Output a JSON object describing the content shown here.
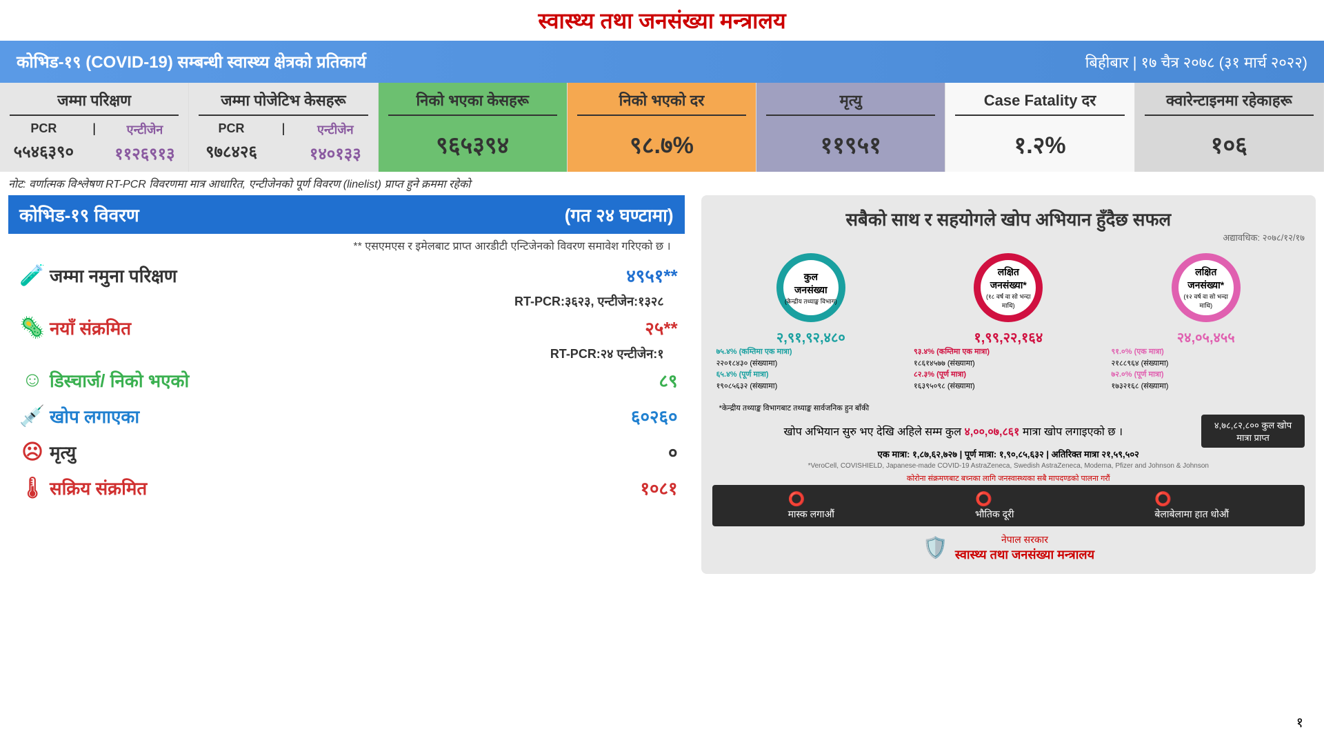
{
  "header": {
    "title": "स्वास्थ्य तथा जनसंख्या मन्त्रालय"
  },
  "banner": {
    "left": "कोभिड-१९ (COVID-19) सम्बन्धी स्वास्थ्य क्षेत्रको प्रतिकार्य",
    "right": "बिहीबार | १७ चैत्र २०७८ (३१ मार्च २०२२)"
  },
  "cards": [
    {
      "title": "जम्मा परिक्षण",
      "bg": "#e6e6e6",
      "split": true,
      "h1": "PCR",
      "h2": "एन्टीजेन",
      "v1": "५५४६३९०",
      "v2": "११२६९१३",
      "v1c": "#333",
      "v2c": "#8a5aa0"
    },
    {
      "title": "जम्मा पोजेटिभ केसहरू",
      "bg": "#e6e6e6",
      "split": true,
      "h1": "PCR",
      "h2": "एन्टीजेन",
      "v1": "९७८४२६",
      "v2": "१४०१३३",
      "v1c": "#333",
      "v2c": "#8a5aa0"
    },
    {
      "title": "निको भएका केसहरू",
      "bg": "#6cc070",
      "big": "९६५३९४"
    },
    {
      "title": "निको भएको दर",
      "bg": "#f5a850",
      "big": "९८.७%"
    },
    {
      "title": "मृत्यु",
      "bg": "#a0a0c0",
      "big": "११९५१"
    },
    {
      "title": "Case Fatality दर",
      "bg": "#f8f8f8",
      "big": "१.२%"
    },
    {
      "title": "क्वारेन्टाइनमा रहेकाहरू",
      "bg": "#d8d8d8",
      "big": "१०६"
    }
  ],
  "note": "नोट: वर्णात्मक विश्लेषण RT-PCR विवरणमा मात्र आधारित, एन्टीजेनको पूर्ण विवरण (linelist) प्राप्त हुने क्रममा रहेको",
  "detail": {
    "header_l": "कोभिड-१९ विवरण",
    "header_r": "(गत २४ घण्टामा)",
    "subnote": "** एसएमएस र इमेलबाट प्राप्त आरडीटी एन्टिजेनको विवरण समावेश गरिएको छ ।",
    "rows": [
      {
        "icon": "🧪",
        "iconc": "#2070d0",
        "label": "जम्मा नमुना परिक्षण",
        "labelc": "#333",
        "val": "४९५१**",
        "valc": "#2070d0",
        "sub": "RT-PCR:३६२३, एन्टीजेन:१३२८"
      },
      {
        "icon": "🦠",
        "iconc": "#d03030",
        "label": "नयाँ संक्रमित",
        "labelc": "#d03030",
        "val": "२५**",
        "valc": "#d03030",
        "sub": "RT-PCR:२४ एन्टीजेन:१"
      },
      {
        "icon": "☺",
        "iconc": "#3ab050",
        "label": "डिस्चार्ज/ निको भएको",
        "labelc": "#3ab050",
        "val": "८९",
        "valc": "#3ab050",
        "sub": ""
      },
      {
        "icon": "💉",
        "iconc": "#2080d0",
        "label": "खोप लगाएका",
        "labelc": "#2080d0",
        "val": "६०२६०",
        "valc": "#2080d0",
        "sub": ""
      },
      {
        "icon": "☹",
        "iconc": "#d03030",
        "label": "मृत्यु",
        "labelc": "#333",
        "val": "०",
        "valc": "#333",
        "sub": ""
      },
      {
        "icon": "🌡",
        "iconc": "#d03030",
        "label": "सक्रिय संक्रमित",
        "labelc": "#d03030",
        "val": "१०८१",
        "valc": "#d03030",
        "sub": ""
      }
    ]
  },
  "vax": {
    "title": "सबैको साथ र सहयोगले खोप अभियान हुँदैछ सफल",
    "date": "अद्यावधिक: २०७८/१२/१७",
    "circles": [
      {
        "color": "#1aa0a0",
        "t1": "कुल",
        "t2": "जनसंख्या",
        "t3": "(केन्द्रीय तथ्याङ्क विभाग)",
        "num": "२,९१,९२,४८०",
        "s1": "७५.४% (कम्तिमा एक मात्रा)",
        "s1b": "२२०१८४३० (संख्यामा)",
        "s2": "६५.४% (पूर्ण मात्रा)",
        "s2b": "१९०८५६३२ (संख्यामा)"
      },
      {
        "color": "#d01040",
        "t1": "लक्षित",
        "t2": "जनसंख्या*",
        "t3": "(१८ वर्ष वा सो भन्दा माथि)",
        "num": "१,९९,२२,१६४",
        "s1": "९३.४% (कम्तिमा एक मात्रा)",
        "s1b": "१८६१४५७७ (संख्यामा)",
        "s2": "८२.३% (पूर्ण मात्रा)",
        "s2b": "१६३९५०९८ (संख्यामा)"
      },
      {
        "color": "#e060b0",
        "t1": "लक्षित",
        "t2": "जनसंख्या*",
        "t3": "(१२ वर्ष वा सो भन्दा माथि)",
        "num": "२४,०५,४५५",
        "s1": "९१.०% (एक मात्रा)",
        "s1b": "२१८८९६४ (संख्यामा)",
        "s2": "७२.०% (पूर्ण मात्रा)",
        "s2b": "१७३२१६८ (संख्यामा)"
      }
    ],
    "foot_note": "*केन्द्रीय तथ्याङ्क विभागबाट तथ्याङ्क सार्वजनिक हुन बाँकी",
    "foot_line1": "खोप अभियान सुरु भए देखि अहिले सम्म कुल",
    "foot_line1_num": "४,००,०७,८६१",
    "foot_line1_end": "मात्रा खोप लगाइएको छ ।",
    "foot_box": "४,७८,८२,८०० कुल खोप मात्रा प्राप्त",
    "foot_line2": "एक मात्रा: १,८७,६२,७२७ | पूर्ण मात्रा: १,९०,८५,६३२ | अतिरिक्त मात्रा २१,५९,५०२",
    "foot_line3": "*VeroCell, COVISHIELD, Japanese-made COVID-19 AstraZeneca, Swedish AstraZeneca, Moderna, Pfizer and Johnson & Johnson",
    "dark_note": "कोरोना संक्रमणबाट बच्नका लागि जनस्वास्थ्यका सबै मापदण्डको पालना गरौं",
    "dark_items": [
      "मास्क लगाऔं",
      "भौतिक दूरी",
      "बेलाबेलामा हात धोऔं"
    ],
    "bottom": "नेपाल सरकार",
    "bottom2": "स्वास्थ्य तथा जनसंख्या मन्त्रालय"
  },
  "page": "१"
}
